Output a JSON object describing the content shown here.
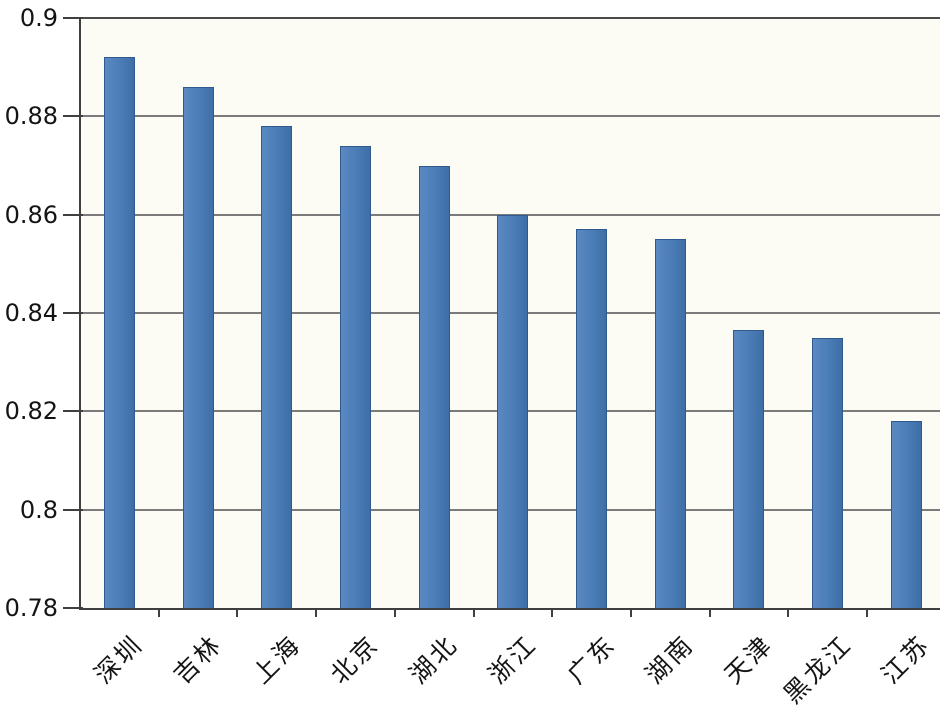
{
  "chart_data": {
    "type": "bar",
    "title": "",
    "xlabel": "",
    "ylabel": "",
    "categories": [
      "深圳",
      "吉林",
      "上海",
      "北京",
      "湖北",
      "浙江",
      "广东",
      "湖南",
      "天津",
      "黑龙江",
      "江苏"
    ],
    "values": [
      0.892,
      0.886,
      0.878,
      0.874,
      0.87,
      0.86,
      0.857,
      0.855,
      0.8365,
      0.835,
      0.818
    ],
    "ylim": [
      0.78,
      0.9
    ],
    "yticks": [
      0.78,
      0.8,
      0.82,
      0.84,
      0.86,
      0.88,
      0.9
    ],
    "ytick_labels": [
      "0.78",
      "0.8",
      "0.82",
      "0.84",
      "0.86",
      "0.88",
      "0.9"
    ],
    "grid": true,
    "legend": false,
    "x_labels_rotation_deg": 45,
    "bar_color": "#4a7cb6",
    "bar_border_color": "#2e5a8f",
    "gridline_color": "#7b7b7b",
    "axis_color": "#3f3f3f",
    "plot_background": "#fcfcf4",
    "text_color": "#141414"
  }
}
